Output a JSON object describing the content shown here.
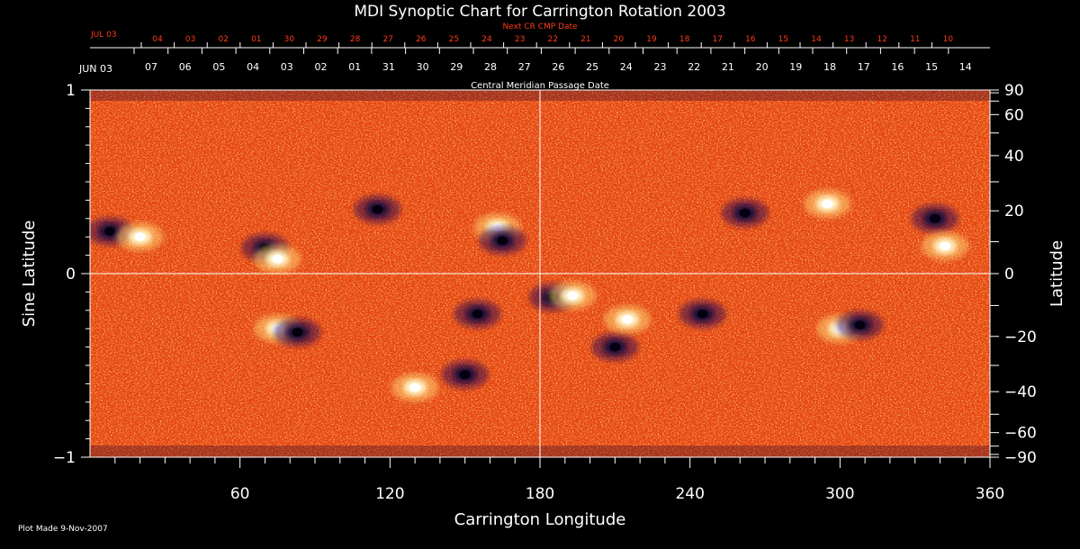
{
  "chart_data": {
    "type": "heatmap",
    "title": "MDI Synoptic Chart for Carrington Rotation 2003",
    "xlabel": "Carrington Longitude",
    "ylabel_left": "Sine Latitude",
    "ylabel_right": "Latitude",
    "xlim": [
      0,
      360
    ],
    "ylim": [
      -1,
      1
    ],
    "x_ticks": [
      60,
      120,
      180,
      240,
      300,
      360
    ],
    "y_left_ticks": [
      "1",
      "0",
      "−1"
    ],
    "y_left_values": [
      1,
      0,
      -1
    ],
    "y_right_ticks": [
      90,
      60,
      40,
      20,
      0,
      -20,
      -40,
      -60,
      -90
    ],
    "y_right_labels": [
      "90",
      "60",
      "40",
      "20",
      "0",
      "−20",
      "−40",
      "−60",
      "−90"
    ],
    "cmp_axis_label": "Central Meridian Passage Date",
    "cmp_start_label": "JUN 03",
    "cmp_dates": [
      "07",
      "06",
      "05",
      "04",
      "03",
      "02",
      "01",
      "31",
      "30",
      "29",
      "28",
      "27",
      "26",
      "25",
      "24",
      "23",
      "22",
      "21",
      "20",
      "19",
      "18",
      "17",
      "16",
      "15",
      "14"
    ],
    "next_cr_label": "Next CR CMP Date",
    "next_cr_start_label": "JUL 03",
    "next_cr_dates": [
      "04",
      "03",
      "02",
      "01",
      "30",
      "29",
      "28",
      "27",
      "26",
      "25",
      "24",
      "23",
      "22",
      "21",
      "20",
      "19",
      "18",
      "17",
      "16",
      "15",
      "14",
      "13",
      "12",
      "11",
      "10"
    ],
    "footer": "Plot Made  9-Nov-2007",
    "active_regions": [
      {
        "lon": 8,
        "sinlat": 0.23,
        "polarity": "negative"
      },
      {
        "lon": 20,
        "sinlat": 0.2,
        "polarity": "positive"
      },
      {
        "lon": 70,
        "sinlat": 0.14,
        "polarity": "negative"
      },
      {
        "lon": 75,
        "sinlat": 0.08,
        "polarity": "positive"
      },
      {
        "lon": 115,
        "sinlat": 0.35,
        "polarity": "negative"
      },
      {
        "lon": 163,
        "sinlat": 0.25,
        "polarity": "positive"
      },
      {
        "lon": 165,
        "sinlat": 0.18,
        "polarity": "negative"
      },
      {
        "lon": 75,
        "sinlat": -0.3,
        "polarity": "positive"
      },
      {
        "lon": 83,
        "sinlat": -0.32,
        "polarity": "negative"
      },
      {
        "lon": 155,
        "sinlat": -0.22,
        "polarity": "negative"
      },
      {
        "lon": 150,
        "sinlat": -0.55,
        "polarity": "negative"
      },
      {
        "lon": 130,
        "sinlat": -0.62,
        "polarity": "positive"
      },
      {
        "lon": 185,
        "sinlat": -0.13,
        "polarity": "negative"
      },
      {
        "lon": 193,
        "sinlat": -0.12,
        "polarity": "positive"
      },
      {
        "lon": 210,
        "sinlat": -0.4,
        "polarity": "negative"
      },
      {
        "lon": 215,
        "sinlat": -0.25,
        "polarity": "positive"
      },
      {
        "lon": 245,
        "sinlat": -0.22,
        "polarity": "negative"
      },
      {
        "lon": 262,
        "sinlat": 0.33,
        "polarity": "negative"
      },
      {
        "lon": 295,
        "sinlat": 0.38,
        "polarity": "positive"
      },
      {
        "lon": 338,
        "sinlat": 0.3,
        "polarity": "negative"
      },
      {
        "lon": 342,
        "sinlat": 0.15,
        "polarity": "positive"
      },
      {
        "lon": 300,
        "sinlat": -0.3,
        "polarity": "positive"
      },
      {
        "lon": 308,
        "sinlat": -0.28,
        "polarity": "negative"
      }
    ],
    "colors": {
      "background": "#000000",
      "field_base": "#e8420c",
      "positive": "#fff6c8",
      "negative": "#1a0a3a",
      "axis": "#ffffff",
      "date_red": "#ff3a1a"
    }
  }
}
